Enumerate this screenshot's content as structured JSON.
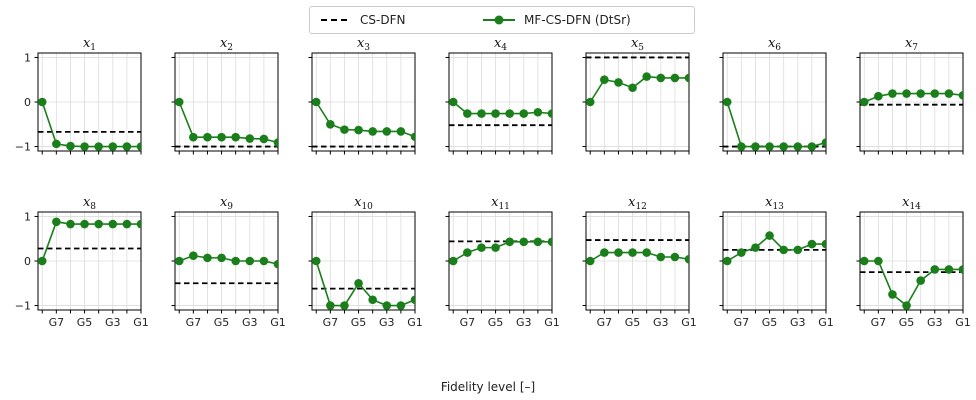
{
  "legend": {
    "cs_label": "CS-DFN",
    "mf_label": "MF-CS-DFN (DtSr)"
  },
  "xlabel": "Fidelity level [–]",
  "colors": {
    "mf": "#1a7f1a",
    "cs": "#000000",
    "grid": "#dcdcdc"
  },
  "chart_data": {
    "type": "line",
    "x": [
      8,
      7,
      6,
      5,
      4,
      3,
      2,
      1
    ],
    "xticks": [
      "G7",
      "G5",
      "G3",
      "G1"
    ],
    "yticks": [
      "1",
      "0",
      "−1"
    ],
    "ylim": [
      -1.1,
      1.1
    ],
    "grid": true,
    "legend_position": "top-center",
    "panels": [
      {
        "title": "x",
        "sub": "1",
        "cs": -0.67,
        "mf": [
          0,
          -0.94,
          -0.99,
          -1.0,
          -1.0,
          -1.0,
          -1.0,
          -1.0
        ]
      },
      {
        "title": "x",
        "sub": "2",
        "cs": -1.0,
        "mf": [
          0,
          -0.79,
          -0.79,
          -0.79,
          -0.79,
          -0.82,
          -0.83,
          -0.91
        ]
      },
      {
        "title": "x",
        "sub": "3",
        "cs": -1.0,
        "mf": [
          0,
          -0.5,
          -0.62,
          -0.63,
          -0.66,
          -0.66,
          -0.66,
          -0.78
        ]
      },
      {
        "title": "x",
        "sub": "4",
        "cs": -0.52,
        "mf": [
          0,
          -0.26,
          -0.26,
          -0.26,
          -0.26,
          -0.26,
          -0.23,
          -0.26
        ]
      },
      {
        "title": "x",
        "sub": "5",
        "cs": 1.0,
        "mf": [
          0,
          0.5,
          0.44,
          0.32,
          0.57,
          0.54,
          0.54,
          0.54
        ]
      },
      {
        "title": "x",
        "sub": "6",
        "cs": -1.0,
        "mf": [
          0,
          -1.0,
          -1.0,
          -1.0,
          -1.0,
          -1.0,
          -1.0,
          -0.91
        ]
      },
      {
        "title": "x",
        "sub": "7",
        "cs": -0.06,
        "mf": [
          0,
          0.13,
          0.19,
          0.19,
          0.19,
          0.19,
          0.19,
          0.15
        ]
      },
      {
        "title": "x",
        "sub": "8",
        "cs": 0.28,
        "mf": [
          0,
          0.88,
          0.83,
          0.83,
          0.83,
          0.83,
          0.83,
          0.83
        ]
      },
      {
        "title": "x",
        "sub": "9",
        "cs": -0.5,
        "mf": [
          0,
          0.12,
          0.07,
          0.07,
          0.0,
          0.0,
          0.0,
          -0.07
        ]
      },
      {
        "title": "x",
        "sub": "10",
        "cs": -0.62,
        "mf": [
          0,
          -1.0,
          -1.0,
          -0.5,
          -0.87,
          -1.0,
          -1.0,
          -0.87
        ]
      },
      {
        "title": "x",
        "sub": "11",
        "cs": 0.44,
        "mf": [
          0,
          0.19,
          0.3,
          0.3,
          0.43,
          0.43,
          0.43,
          0.43
        ]
      },
      {
        "title": "x",
        "sub": "12",
        "cs": 0.47,
        "mf": [
          0,
          0.19,
          0.19,
          0.19,
          0.19,
          0.09,
          0.09,
          0.04
        ]
      },
      {
        "title": "x",
        "sub": "13",
        "cs": 0.25,
        "mf": [
          0,
          0.19,
          0.3,
          0.57,
          0.25,
          0.25,
          0.38,
          0.38
        ]
      },
      {
        "title": "x",
        "sub": "14",
        "cs": -0.25,
        "mf": [
          0,
          0,
          -0.75,
          -1.0,
          -0.44,
          -0.19,
          -0.19,
          -0.19
        ]
      }
    ]
  }
}
